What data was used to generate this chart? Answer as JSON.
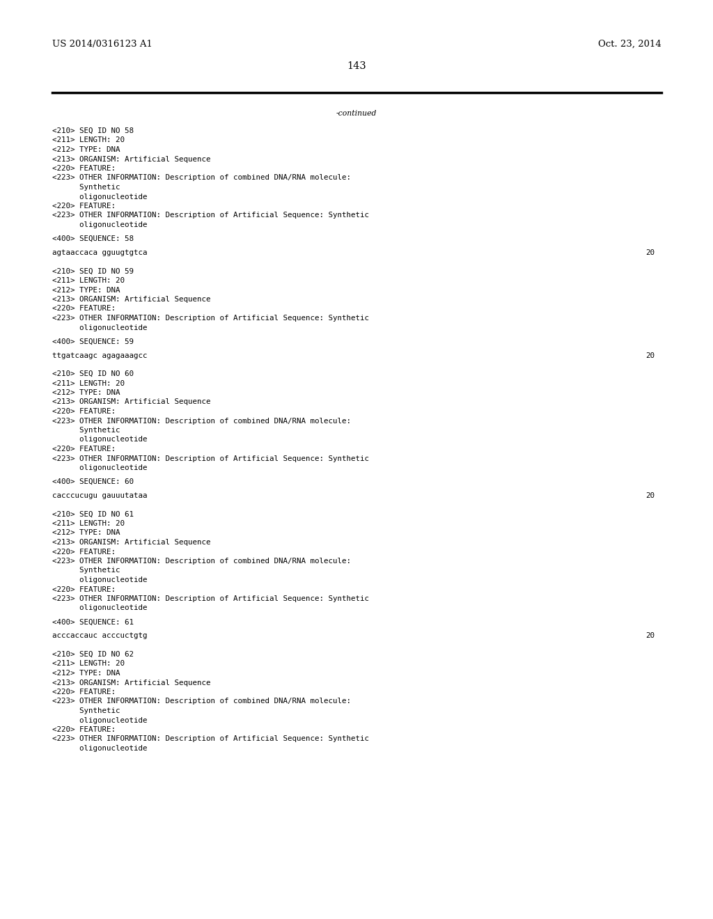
{
  "bg_color": "#ffffff",
  "header_left": "US 2014/0316123 A1",
  "header_right": "Oct. 23, 2014",
  "page_number": "143",
  "continued_text": "-continued",
  "font_size_header": 9.5,
  "font_size_body": 7.8,
  "font_size_page": 10.5,
  "content_lines": [
    {
      "text": "<210> SEQ ID NO 58",
      "seq": false
    },
    {
      "text": "<211> LENGTH: 20",
      "seq": false
    },
    {
      "text": "<212> TYPE: DNA",
      "seq": false
    },
    {
      "text": "<213> ORGANISM: Artificial Sequence",
      "seq": false
    },
    {
      "text": "<220> FEATURE:",
      "seq": false
    },
    {
      "text": "<223> OTHER INFORMATION: Description of combined DNA/RNA molecule:",
      "seq": false
    },
    {
      "text": "      Synthetic",
      "seq": false
    },
    {
      "text": "      oligonucleotide",
      "seq": false
    },
    {
      "text": "<220> FEATURE:",
      "seq": false
    },
    {
      "text": "<223> OTHER INFORMATION: Description of Artificial Sequence: Synthetic",
      "seq": false
    },
    {
      "text": "      oligonucleotide",
      "seq": false
    },
    {
      "text": "",
      "seq": false
    },
    {
      "text": "<400> SEQUENCE: 58",
      "seq": false
    },
    {
      "text": "",
      "seq": false
    },
    {
      "text": "agtaaccaca gguugtgtca",
      "seq": true,
      "num": "20"
    },
    {
      "text": "",
      "seq": false
    },
    {
      "text": "",
      "seq": false
    },
    {
      "text": "<210> SEQ ID NO 59",
      "seq": false
    },
    {
      "text": "<211> LENGTH: 20",
      "seq": false
    },
    {
      "text": "<212> TYPE: DNA",
      "seq": false
    },
    {
      "text": "<213> ORGANISM: Artificial Sequence",
      "seq": false
    },
    {
      "text": "<220> FEATURE:",
      "seq": false
    },
    {
      "text": "<223> OTHER INFORMATION: Description of Artificial Sequence: Synthetic",
      "seq": false
    },
    {
      "text": "      oligonucleotide",
      "seq": false
    },
    {
      "text": "",
      "seq": false
    },
    {
      "text": "<400> SEQUENCE: 59",
      "seq": false
    },
    {
      "text": "",
      "seq": false
    },
    {
      "text": "ttgatcaagc agagaaagcc",
      "seq": true,
      "num": "20"
    },
    {
      "text": "",
      "seq": false
    },
    {
      "text": "",
      "seq": false
    },
    {
      "text": "<210> SEQ ID NO 60",
      "seq": false
    },
    {
      "text": "<211> LENGTH: 20",
      "seq": false
    },
    {
      "text": "<212> TYPE: DNA",
      "seq": false
    },
    {
      "text": "<213> ORGANISM: Artificial Sequence",
      "seq": false
    },
    {
      "text": "<220> FEATURE:",
      "seq": false
    },
    {
      "text": "<223> OTHER INFORMATION: Description of combined DNA/RNA molecule:",
      "seq": false
    },
    {
      "text": "      Synthetic",
      "seq": false
    },
    {
      "text": "      oligonucleotide",
      "seq": false
    },
    {
      "text": "<220> FEATURE:",
      "seq": false
    },
    {
      "text": "<223> OTHER INFORMATION: Description of Artificial Sequence: Synthetic",
      "seq": false
    },
    {
      "text": "      oligonucleotide",
      "seq": false
    },
    {
      "text": "",
      "seq": false
    },
    {
      "text": "<400> SEQUENCE: 60",
      "seq": false
    },
    {
      "text": "",
      "seq": false
    },
    {
      "text": "cacccucugu gauuutataa",
      "seq": true,
      "num": "20"
    },
    {
      "text": "",
      "seq": false
    },
    {
      "text": "",
      "seq": false
    },
    {
      "text": "<210> SEQ ID NO 61",
      "seq": false
    },
    {
      "text": "<211> LENGTH: 20",
      "seq": false
    },
    {
      "text": "<212> TYPE: DNA",
      "seq": false
    },
    {
      "text": "<213> ORGANISM: Artificial Sequence",
      "seq": false
    },
    {
      "text": "<220> FEATURE:",
      "seq": false
    },
    {
      "text": "<223> OTHER INFORMATION: Description of combined DNA/RNA molecule:",
      "seq": false
    },
    {
      "text": "      Synthetic",
      "seq": false
    },
    {
      "text": "      oligonucleotide",
      "seq": false
    },
    {
      "text": "<220> FEATURE:",
      "seq": false
    },
    {
      "text": "<223> OTHER INFORMATION: Description of Artificial Sequence: Synthetic",
      "seq": false
    },
    {
      "text": "      oligonucleotide",
      "seq": false
    },
    {
      "text": "",
      "seq": false
    },
    {
      "text": "<400> SEQUENCE: 61",
      "seq": false
    },
    {
      "text": "",
      "seq": false
    },
    {
      "text": "acccaccauc acccuctgtg",
      "seq": true,
      "num": "20"
    },
    {
      "text": "",
      "seq": false
    },
    {
      "text": "",
      "seq": false
    },
    {
      "text": "<210> SEQ ID NO 62",
      "seq": false
    },
    {
      "text": "<211> LENGTH: 20",
      "seq": false
    },
    {
      "text": "<212> TYPE: DNA",
      "seq": false
    },
    {
      "text": "<213> ORGANISM: Artificial Sequence",
      "seq": false
    },
    {
      "text": "<220> FEATURE:",
      "seq": false
    },
    {
      "text": "<223> OTHER INFORMATION: Description of combined DNA/RNA molecule:",
      "seq": false
    },
    {
      "text": "      Synthetic",
      "seq": false
    },
    {
      "text": "      oligonucleotide",
      "seq": false
    },
    {
      "text": "<220> FEATURE:",
      "seq": false
    },
    {
      "text": "<223> OTHER INFORMATION: Description of Artificial Sequence: Synthetic",
      "seq": false
    },
    {
      "text": "      oligonucleotide",
      "seq": false
    }
  ]
}
